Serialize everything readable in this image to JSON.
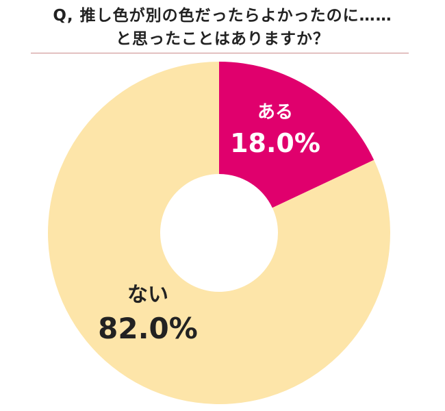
{
  "title": {
    "line1": "Q, 推し色が別の色だったらよかったのに……",
    "line2": "と思ったことはありますか？"
  },
  "colors": {
    "yes": "#e0006d",
    "no": "#fde5a9",
    "yes_label_text": "#ffffff",
    "no_label_text": "#222222",
    "divider": "#c98a8a"
  },
  "chart_data": {
    "type": "pie",
    "variant": "donut",
    "title": "Q, 推し色が別の色だったらよかったのに…… と思ったことはありますか？",
    "unit": "%",
    "slices": [
      {
        "label": "ある",
        "value": 18.0,
        "display": "18.0%"
      },
      {
        "label": "ない",
        "value": 82.0,
        "display": "82.0%"
      }
    ]
  }
}
